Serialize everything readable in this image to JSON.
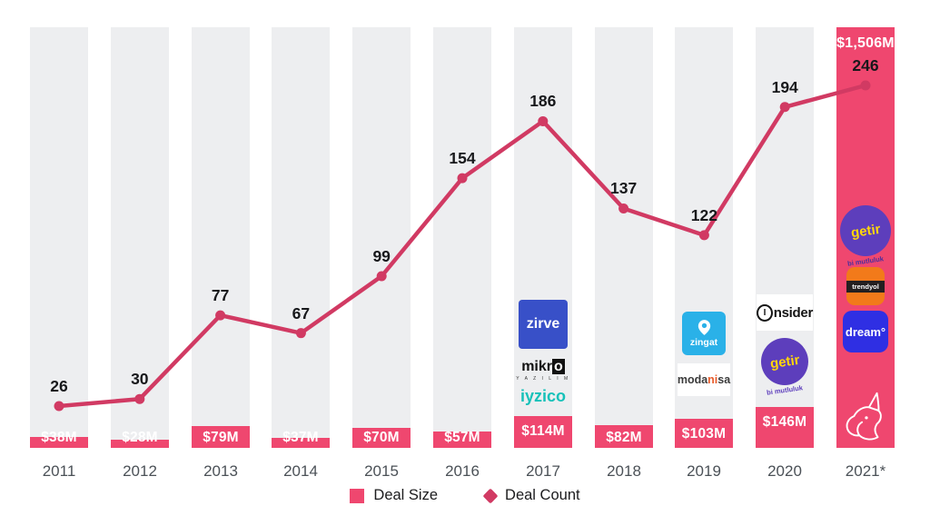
{
  "chart_data": {
    "type": "combo-bar-line",
    "title": "",
    "categories": [
      "2011",
      "2012",
      "2013",
      "2014",
      "2015",
      "2016",
      "2017",
      "2018",
      "2019",
      "2020",
      "2021*"
    ],
    "series": [
      {
        "name": "Deal Size",
        "type": "bar",
        "unit": "USD millions",
        "values": [
          38,
          28,
          79,
          37,
          70,
          57,
          114,
          82,
          103,
          146,
          1506
        ],
        "labels": [
          "$38M",
          "$28M",
          "$79M",
          "$37M",
          "$70M",
          "$57M",
          "$114M",
          "$82M",
          "$103M",
          "$146M",
          "$1,506M"
        ],
        "color": "#ef476f"
      },
      {
        "name": "Deal Count",
        "type": "line",
        "values": [
          26,
          30,
          77,
          67,
          99,
          154,
          186,
          137,
          122,
          194,
          246
        ],
        "color": "#d13a63"
      }
    ],
    "legend_position": "bottom",
    "grid": false
  },
  "legend": {
    "deal_size": "Deal Size",
    "deal_count": "Deal Count"
  },
  "logos": {
    "zirve": "zirve",
    "mikro_start": "mikr",
    "mikro_o": "o",
    "mikro_sub": "Y A Z I L I M",
    "iyzico": "iyzico",
    "zingat": "zingat",
    "modanisa_pre": "moda",
    "modanisa_ni": "ni",
    "modanisa_post": "sa",
    "insider_i": "I",
    "insider_rest": "nsider",
    "getir": "getir",
    "getir_slogan": "bi mutluluk",
    "trendyol": "trendyol",
    "dream": "dream°"
  },
  "colors": {
    "bar_pink": "#ef476f",
    "line_crimson": "#d13a63",
    "column_bg": "#edeef0",
    "getir_purple": "#5d3ebc",
    "getir_yellow": "#ffd60a",
    "zirve_blue": "#3850c8",
    "zingat_blue": "#2ab1e8",
    "trendyol_orange": "#f27a1a",
    "dream_blue": "#2f2fe3",
    "iyzico_teal": "#16c1b9"
  }
}
